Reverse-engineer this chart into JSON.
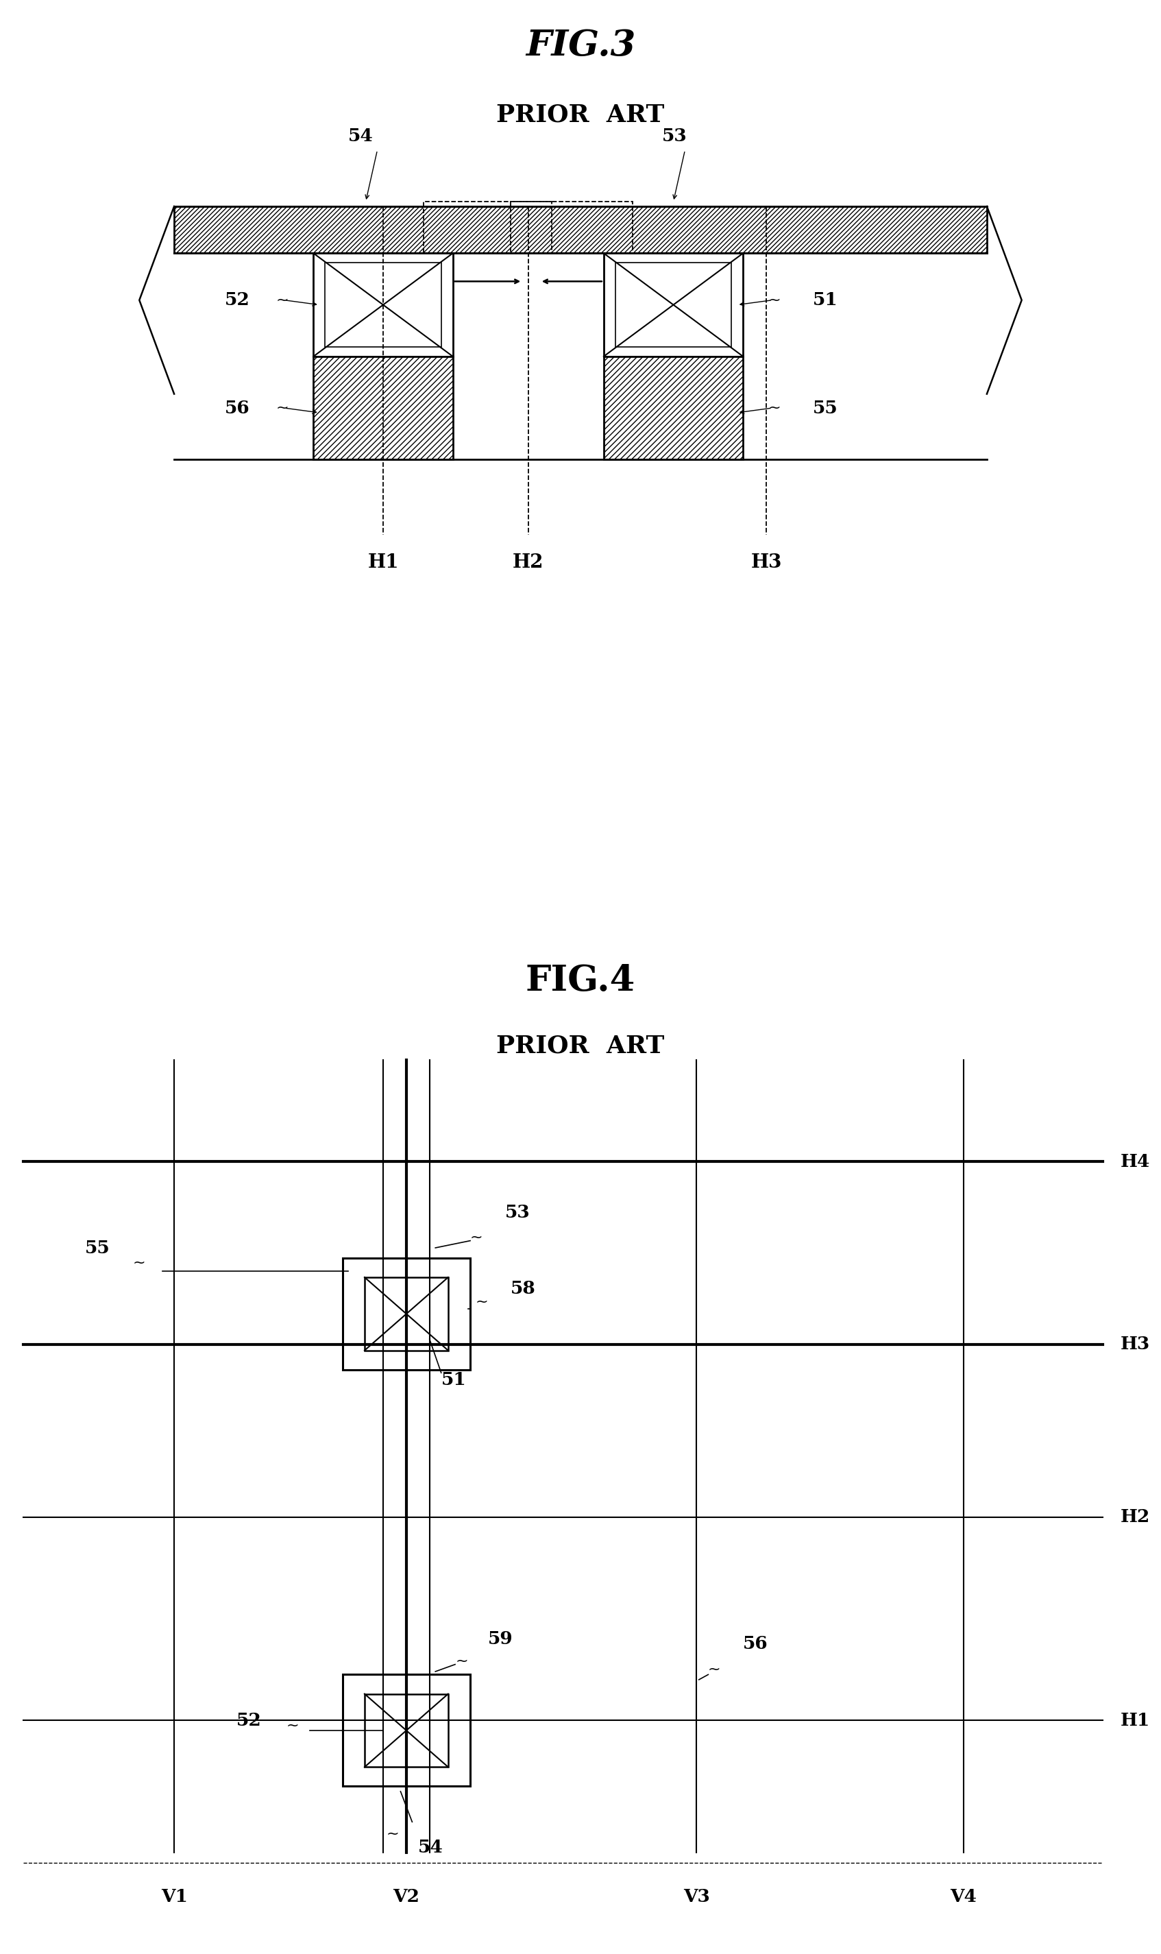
{
  "fig3_title": "FIG.3",
  "fig3_subtitle": "PRIOR  ART",
  "fig4_title": "FIG.4",
  "fig4_subtitle": "PRIOR  ART",
  "background_color": "#ffffff",
  "line_color": "#000000"
}
